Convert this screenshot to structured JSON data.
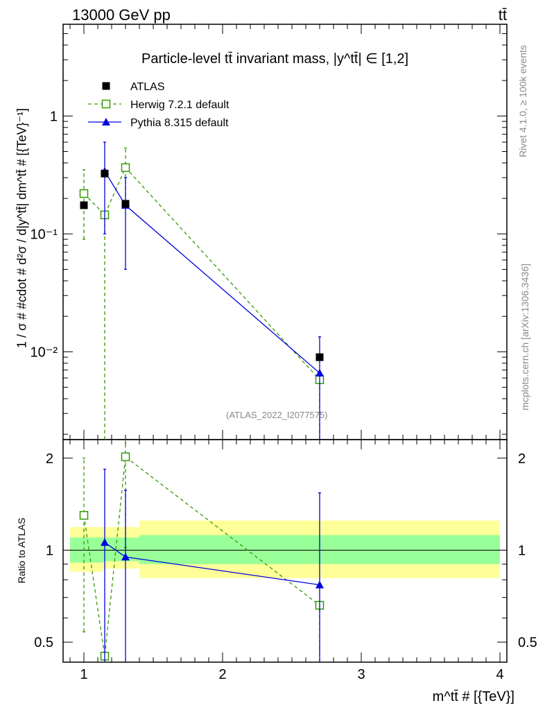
{
  "header": {
    "energy_label": "13000 GeV pp",
    "process_label": "tt̄"
  },
  "side_labels": {
    "rivet": "Rivet 4.1.0, ≥ 100k events",
    "mcplots": "mcplots.cern.ch [arXiv:1306.3436]"
  },
  "watermark": "(ATLAS_2022_I2077575)",
  "colors": {
    "atlas": "#000000",
    "herwig": "#339900",
    "pythia": "#0000dd",
    "band_inner": "#99ff99",
    "band_outer": "#ffff99"
  },
  "chart_data": [
    {
      "type": "scatter",
      "panel": "main",
      "title": "Particle-level tt̄ invariant mass, |y^tt̄| ∈ [1,2]",
      "ylabel": "1 / σ # #cdot # d²σ / d|y^tt̄| dm^tt̄ # [{TeV}⁻¹]",
      "yscale": "log",
      "xlim": [
        0.85,
        4.05
      ],
      "ylim": [
        0.0018,
        6
      ],
      "y_ticks": [
        {
          "value": 1,
          "label": "1"
        },
        {
          "value": 0.1,
          "label": "10⁻¹"
        },
        {
          "value": 0.01,
          "label": "10⁻²"
        }
      ],
      "legend_position": "top-left",
      "series": [
        {
          "name": "ATLAS",
          "style": "data",
          "x": [
            1.0,
            1.15,
            1.3,
            2.7
          ],
          "y": [
            0.175,
            0.325,
            0.18,
            0.009
          ],
          "yerr_low": [
            0.0,
            0.0,
            0.0,
            0.0
          ],
          "yerr_high": [
            0.0,
            0.0,
            0.0,
            0.0
          ]
        },
        {
          "name": "Herwig 7.2.1 default",
          "style": "herwig",
          "x": [
            1.0,
            1.15,
            1.3,
            2.7
          ],
          "y": [
            0.22,
            0.145,
            0.365,
            0.0058
          ],
          "yerr_low": [
            0.13,
            0.145,
            0.18,
            0.0058
          ],
          "yerr_high": [
            0.13,
            0.0,
            0.17,
            0.0
          ]
        },
        {
          "name": "Pythia 8.315 default",
          "style": "pythia",
          "x": [
            1.15,
            1.3,
            2.7
          ],
          "y": [
            0.34,
            0.175,
            0.0066
          ],
          "yerr_low": [
            0.24,
            0.125,
            0.0066
          ],
          "yerr_high": [
            0.26,
            0.125,
            0.0068
          ]
        }
      ]
    },
    {
      "type": "scatter",
      "panel": "ratio",
      "ylabel": "Ratio to ATLAS",
      "xlabel": "m^tt̄ # [{TeV}]",
      "yscale": "log",
      "xlim": [
        0.85,
        4.05
      ],
      "ylim": [
        0.43,
        2.3
      ],
      "x_ticks": [
        {
          "value": 1,
          "label": "1"
        },
        {
          "value": 2,
          "label": "2"
        },
        {
          "value": 3,
          "label": "3"
        },
        {
          "value": 4,
          "label": "4"
        }
      ],
      "y_ticks": [
        {
          "value": 0.5,
          "label": "0.5"
        },
        {
          "value": 1,
          "label": "1"
        },
        {
          "value": 2,
          "label": "2"
        }
      ],
      "uncertainty_bands": [
        {
          "x_low": 0.9,
          "x_high": 1.14,
          "inner": [
            0.91,
            1.1
          ],
          "outer": [
            0.85,
            1.19
          ]
        },
        {
          "x_low": 1.14,
          "x_high": 1.4,
          "inner": [
            0.92,
            1.1
          ],
          "outer": [
            0.87,
            1.19
          ]
        },
        {
          "x_low": 1.4,
          "x_high": 4.0,
          "inner": [
            0.9,
            1.12
          ],
          "outer": [
            0.81,
            1.25
          ]
        }
      ],
      "series": [
        {
          "name": "Herwig 7.2.1 default",
          "style": "herwig",
          "x": [
            1.0,
            1.15,
            1.3,
            2.7
          ],
          "y": [
            1.3,
            0.45,
            2.02,
            0.66
          ],
          "yerr_low": [
            0.76,
            0.45,
            1.0,
            0.66
          ],
          "yerr_high": [
            0.7,
            0.0,
            0.3,
            0.0
          ]
        },
        {
          "name": "Pythia 8.315 default",
          "style": "pythia",
          "x": [
            1.15,
            1.3,
            2.7
          ],
          "y": [
            1.06,
            0.95,
            0.77
          ],
          "yerr_low": [
            0.7,
            0.95,
            0.77
          ],
          "yerr_high": [
            0.78,
            0.62,
            0.77
          ]
        }
      ]
    }
  ]
}
